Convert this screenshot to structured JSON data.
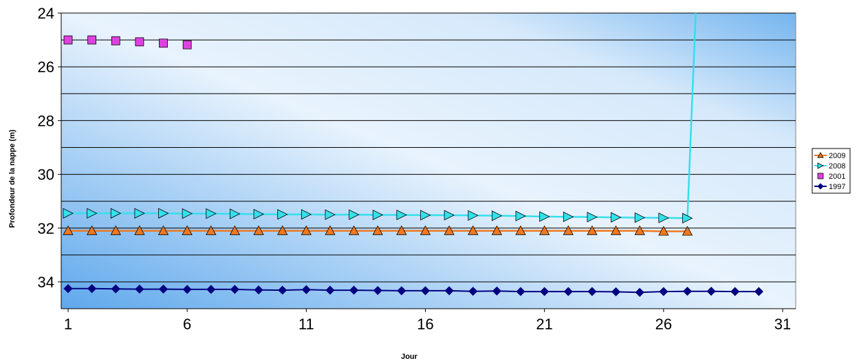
{
  "chart_data": {
    "type": "line",
    "title": "",
    "xlabel": "Jour",
    "ylabel": "Profondeur de la nappe (m)",
    "xlim": [
      1,
      31
    ],
    "ylim": [
      35,
      24
    ],
    "y_inverted": true,
    "x_ticks": [
      "1",
      "6",
      "11",
      "16",
      "21",
      "26",
      "31"
    ],
    "y_ticks": [
      "24",
      "26",
      "28",
      "30",
      "32",
      "34"
    ],
    "grid": "horizontal",
    "legend_position": "right",
    "series": [
      {
        "name": "2009",
        "color": "#f07820",
        "marker": "triangle-up",
        "marker_fill": "#f07820",
        "x": [
          1,
          2,
          3,
          4,
          5,
          6,
          7,
          8,
          9,
          10,
          11,
          12,
          13,
          14,
          15,
          16,
          17,
          18,
          19,
          20,
          21,
          22,
          23,
          24,
          25,
          26,
          27
        ],
        "y": [
          32.1,
          32.1,
          32.1,
          32.1,
          32.1,
          32.1,
          32.1,
          32.1,
          32.1,
          32.1,
          32.1,
          32.1,
          32.1,
          32.1,
          32.1,
          32.1,
          32.1,
          32.1,
          32.1,
          32.1,
          32.1,
          32.1,
          32.1,
          32.1,
          32.1,
          32.12,
          32.12
        ]
      },
      {
        "name": "2008",
        "color": "#33e0ec",
        "marker": "triangle-right",
        "marker_fill": "#33e0ec",
        "x": [
          1,
          2,
          3,
          4,
          5,
          6,
          7,
          8,
          9,
          10,
          11,
          12,
          13,
          14,
          15,
          16,
          17,
          18,
          19,
          20,
          21,
          22,
          23,
          24,
          25,
          26,
          27
        ],
        "y": [
          31.45,
          31.45,
          31.45,
          31.45,
          31.45,
          31.46,
          31.46,
          31.47,
          31.48,
          31.49,
          31.49,
          31.5,
          31.5,
          31.51,
          31.51,
          31.52,
          31.52,
          31.53,
          31.54,
          31.55,
          31.57,
          31.58,
          31.59,
          31.6,
          31.61,
          31.62,
          31.63
        ],
        "trailing_line": {
          "x": [
            27,
            27.35
          ],
          "y": [
            31.63,
            24
          ]
        }
      },
      {
        "name": "2001",
        "color": "#e040e0",
        "marker": "square",
        "marker_fill": "#e040e0",
        "line": false,
        "x": [
          1,
          2,
          3,
          4,
          5,
          6
        ],
        "y": [
          25.0,
          25.0,
          25.03,
          25.07,
          25.12,
          25.18
        ]
      },
      {
        "name": "1997",
        "color": "#000080",
        "marker": "diamond",
        "marker_fill": "#000080",
        "x": [
          1,
          2,
          3,
          4,
          5,
          6,
          7,
          8,
          9,
          10,
          11,
          12,
          13,
          14,
          15,
          16,
          17,
          18,
          19,
          20,
          21,
          22,
          23,
          24,
          25,
          26,
          27,
          28,
          29,
          30
        ],
        "y": [
          34.25,
          34.25,
          34.26,
          34.27,
          34.27,
          34.28,
          34.28,
          34.28,
          34.3,
          34.31,
          34.29,
          34.31,
          34.31,
          34.32,
          34.33,
          34.33,
          34.33,
          34.35,
          34.34,
          34.36,
          34.36,
          34.36,
          34.36,
          34.37,
          34.39,
          34.36,
          34.35,
          34.35,
          34.36,
          34.36
        ]
      }
    ],
    "legend_order": [
      "2009",
      "2008",
      "2001",
      "1997"
    ]
  }
}
